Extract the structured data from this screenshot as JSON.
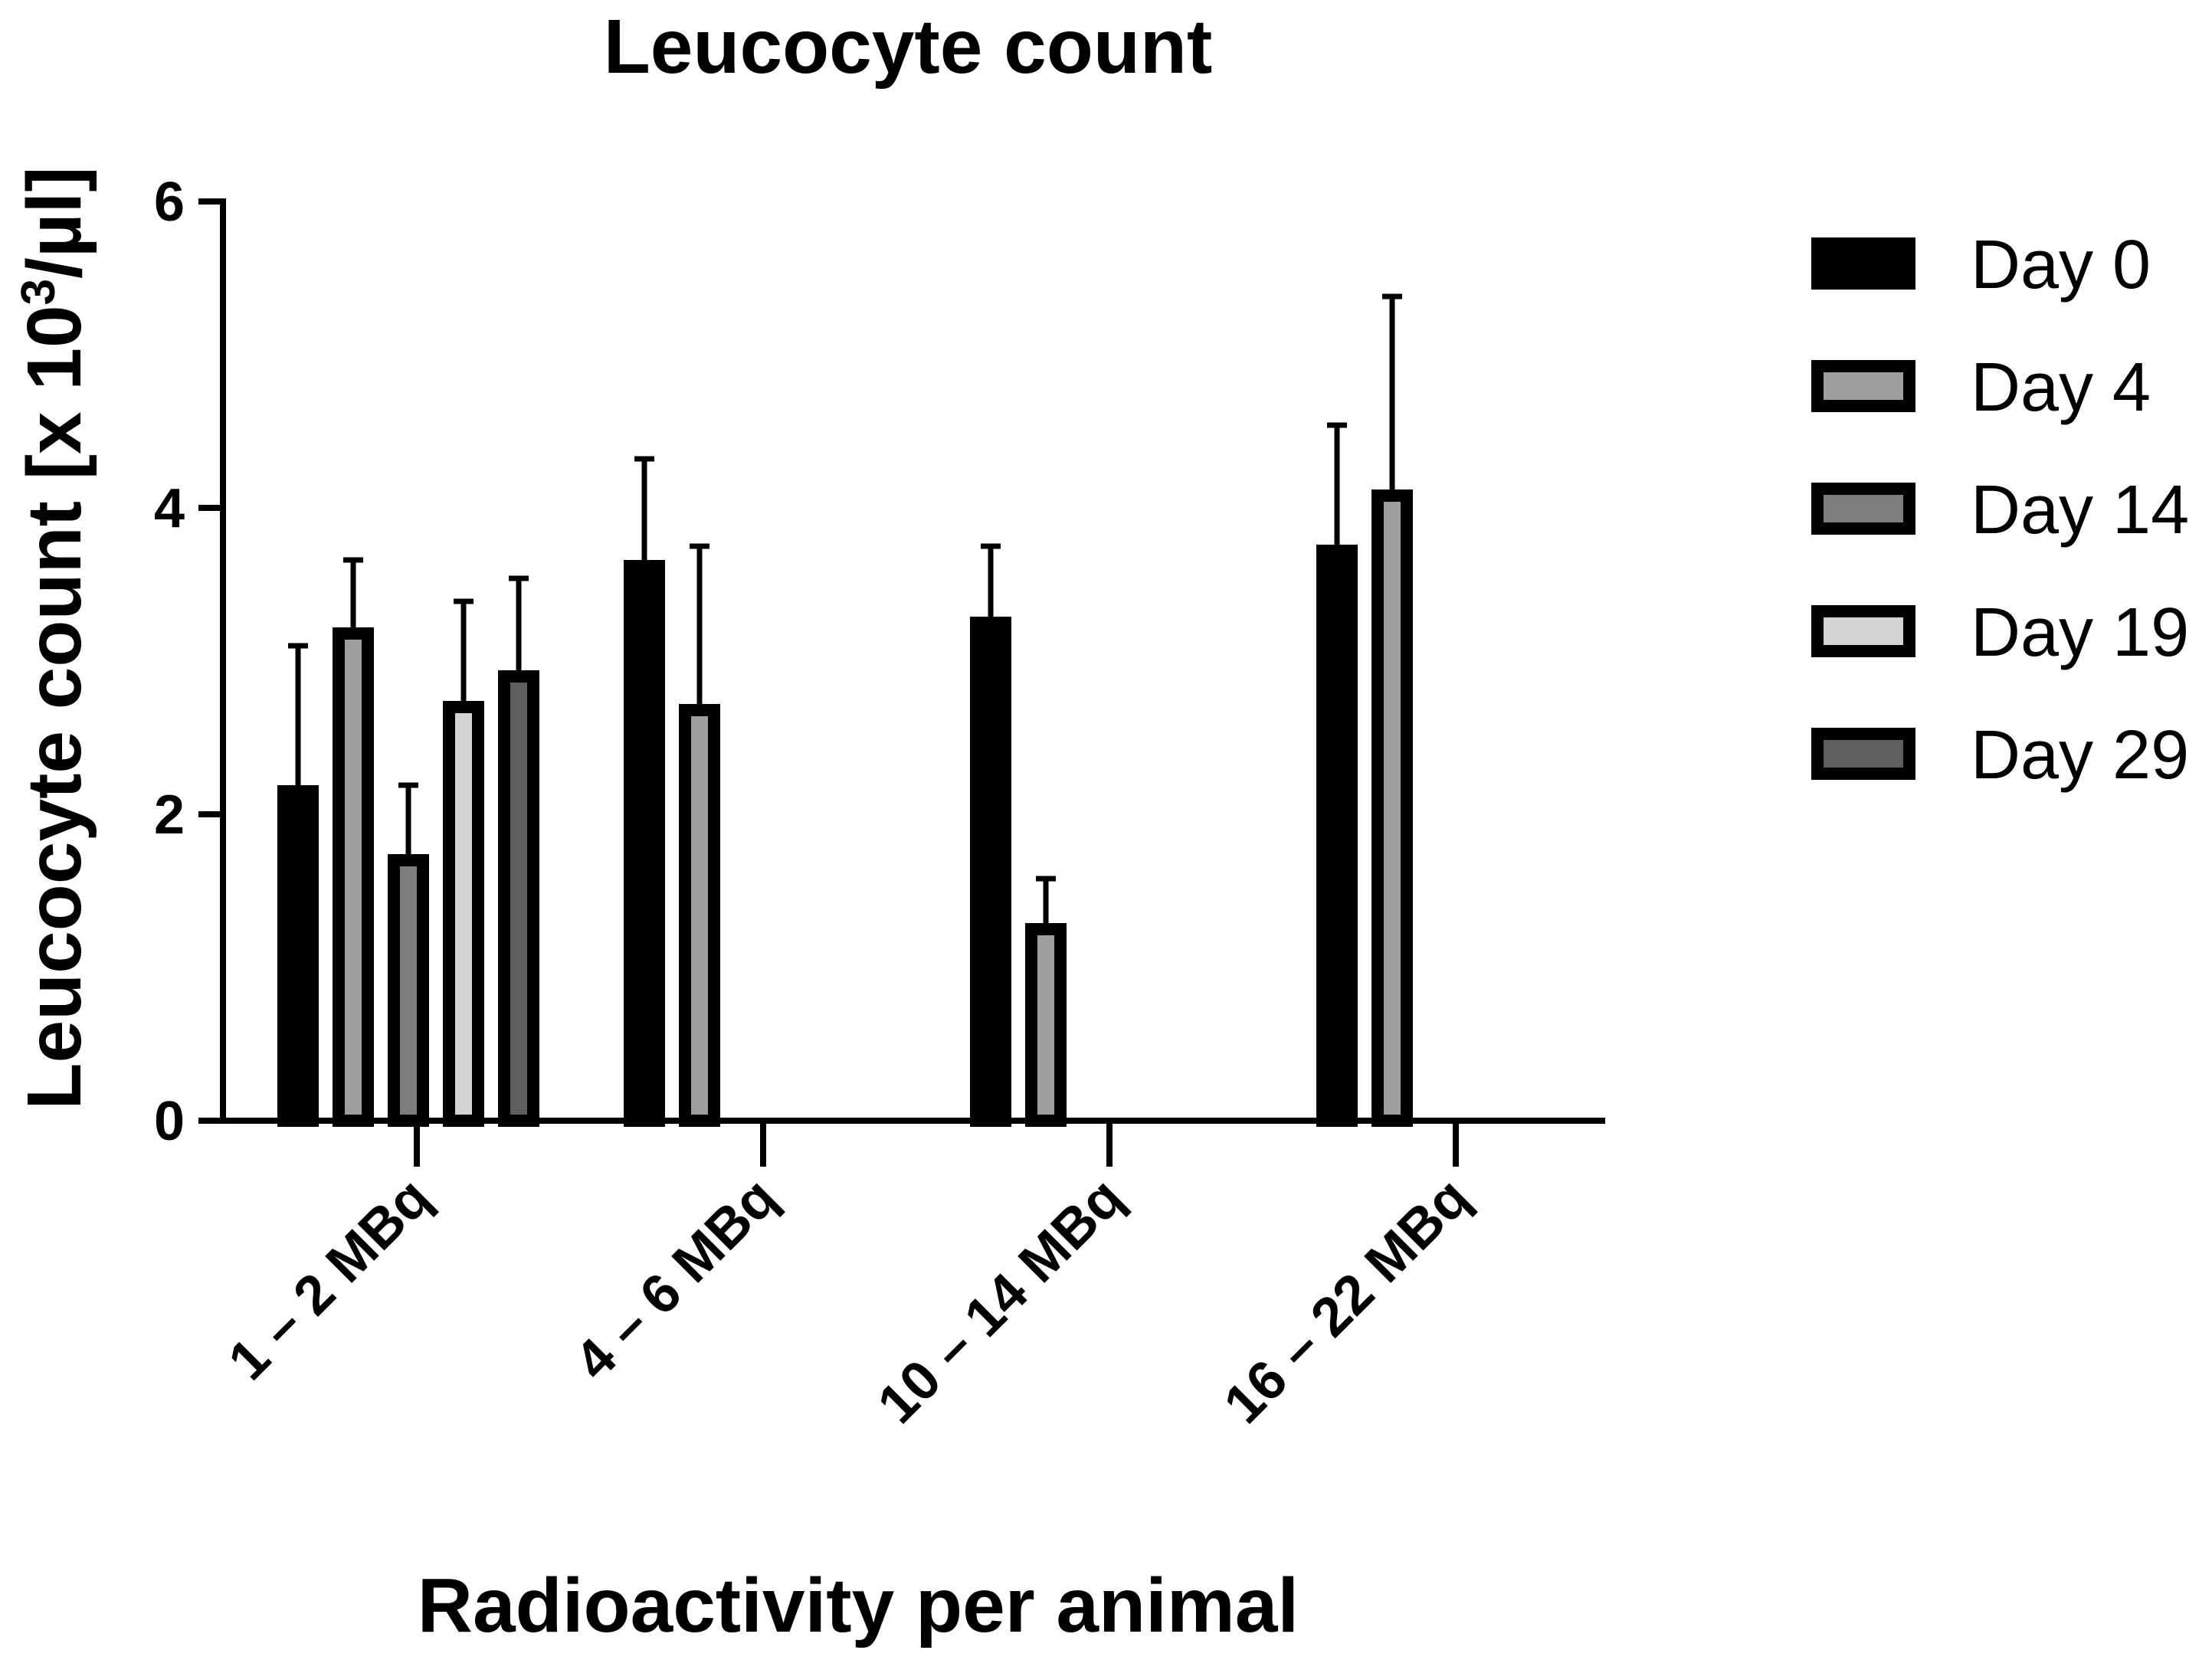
{
  "chart_data": {
    "type": "bar",
    "title": "Leucocyte count",
    "xlabel": "Radioactivity per animal",
    "ylabel_main": "Leucocyte count [x 10",
    "ylabel_sup": "3",
    "ylabel_tail": "/µl]",
    "ylim": [
      0,
      6
    ],
    "yticks": [
      0,
      2,
      4,
      6
    ],
    "grid": false,
    "legend_position": "right",
    "categories": [
      "1 – 2 MBq",
      "4 – 6 MBq",
      "10 – 14 MBq",
      "16 – 22 MBq"
    ],
    "series": [
      {
        "name": "Day 0",
        "color": "#000000",
        "values": [
          2.15,
          3.62,
          3.25,
          3.72
        ],
        "errors": [
          0.95,
          0.7,
          0.5,
          0.82
        ]
      },
      {
        "name": "Day 4",
        "color": "#9e9e9e",
        "values": [
          3.18,
          2.68,
          1.25,
          4.08
        ],
        "errors": [
          0.48,
          1.07,
          0.33,
          1.3
        ]
      },
      {
        "name": "Day 14",
        "color": "#7d7d7d",
        "values": [
          1.7,
          null,
          null,
          null
        ],
        "errors": [
          0.49,
          null,
          null,
          null
        ]
      },
      {
        "name": "Day 19",
        "color": "#d4d4d4",
        "values": [
          2.7,
          null,
          null,
          null
        ],
        "errors": [
          0.69,
          null,
          null,
          null
        ]
      },
      {
        "name": "Day 29",
        "color": "#5e5e5e",
        "values": [
          2.9,
          null,
          null,
          null
        ],
        "errors": [
          0.64,
          null,
          null,
          null
        ]
      }
    ]
  }
}
